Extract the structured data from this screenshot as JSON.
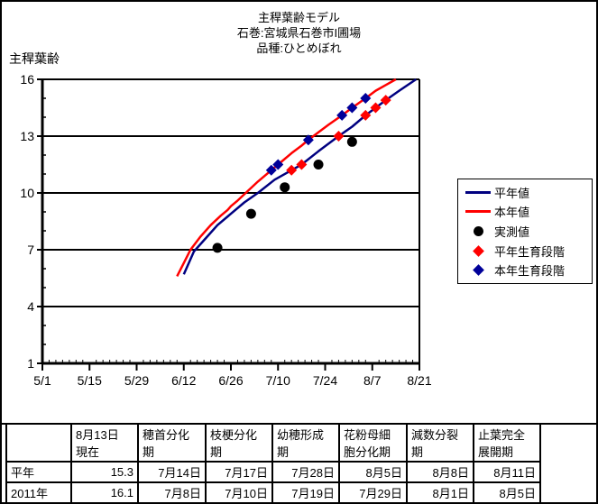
{
  "title": {
    "line1": "主稈葉齢モデル",
    "line2": "石巻:宮城県石巻市I圃場",
    "line3": "品種:ひとめぼれ"
  },
  "y_axis_label": "主稈葉齢",
  "colors": {
    "normal_line": "#000080",
    "this_year_line": "#ff0000",
    "observed_point": "#000000",
    "normal_stage_point": "#ff0000",
    "this_year_stage_point": "#000099"
  },
  "chart_data": {
    "type": "line",
    "title": "主稈葉齢モデル 石巻:宮城県石巻市I圃場 品種:ひとめぼれ",
    "xlabel": "",
    "ylabel": "主稈葉齢",
    "x_range": [
      "5/1",
      "8/21"
    ],
    "y_range": [
      1,
      16
    ],
    "x_ticks": [
      "5/1",
      "5/15",
      "5/29",
      "6/12",
      "6/26",
      "7/10",
      "7/24",
      "8/7",
      "8/21"
    ],
    "y_ticks": [
      16,
      13,
      10,
      7,
      4,
      1
    ],
    "grid": "horizontal-major",
    "legend_position": "right",
    "series": [
      {
        "id": "normal-line",
        "name": "平年値",
        "type": "line",
        "color": "#000080",
        "points": [
          [
            "6/12",
            5.7
          ],
          [
            "6/15",
            6.9
          ],
          [
            "6/18",
            7.5
          ],
          [
            "6/22",
            8.3
          ],
          [
            "6/26",
            8.9
          ],
          [
            "6/30",
            9.5
          ],
          [
            "7/4",
            10.0
          ],
          [
            "7/9",
            10.7
          ],
          [
            "7/14",
            11.2
          ],
          [
            "7/17",
            11.5
          ],
          [
            "7/22",
            12.2
          ],
          [
            "7/28",
            13.0
          ],
          [
            "8/1",
            13.5
          ],
          [
            "8/5",
            14.1
          ],
          [
            "8/8",
            14.5
          ],
          [
            "8/11",
            14.9
          ],
          [
            "8/15",
            15.4
          ],
          [
            "8/20",
            16.0
          ]
        ]
      },
      {
        "id": "this-year-line",
        "name": "本年値",
        "type": "line",
        "color": "#ff0000",
        "points": [
          [
            "6/10",
            5.6
          ],
          [
            "6/12",
            6.3
          ],
          [
            "6/14",
            7.0
          ],
          [
            "6/17",
            7.7
          ],
          [
            "6/20",
            8.3
          ],
          [
            "6/23",
            8.8
          ],
          [
            "6/25",
            9.1
          ],
          [
            "6/26",
            9.3
          ],
          [
            "6/28",
            9.6
          ],
          [
            "7/1",
            10.1
          ],
          [
            "7/4",
            10.6
          ],
          [
            "7/8",
            11.2
          ],
          [
            "7/10",
            11.5
          ],
          [
            "7/14",
            12.1
          ],
          [
            "7/17",
            12.5
          ],
          [
            "7/19",
            12.8
          ],
          [
            "7/22",
            13.2
          ],
          [
            "7/25",
            13.6
          ],
          [
            "7/29",
            14.1
          ],
          [
            "8/1",
            14.5
          ],
          [
            "8/5",
            15.0
          ],
          [
            "8/8",
            15.4
          ],
          [
            "8/11",
            15.7
          ],
          [
            "8/14",
            16.0
          ]
        ]
      },
      {
        "id": "normal-stage-points",
        "name": "平年生育段階",
        "type": "point",
        "marker": "diamond",
        "color": "#ff0000",
        "points": [
          [
            "7/14",
            11.2
          ],
          [
            "7/17",
            11.5
          ],
          [
            "7/28",
            13.0
          ],
          [
            "8/5",
            14.1
          ],
          [
            "8/8",
            14.5
          ],
          [
            "8/11",
            14.9
          ]
        ]
      },
      {
        "id": "this-year-stage-points",
        "name": "本年生育段階",
        "type": "point",
        "marker": "diamond",
        "color": "#000099",
        "points": [
          [
            "7/8",
            11.2
          ],
          [
            "7/10",
            11.5
          ],
          [
            "7/19",
            12.8
          ],
          [
            "7/29",
            14.1
          ],
          [
            "8/1",
            14.5
          ],
          [
            "8/5",
            15.0
          ]
        ]
      },
      {
        "id": "observed-points",
        "name": "実測値",
        "type": "point",
        "marker": "circle",
        "color": "#000000",
        "points": [
          [
            "6/22",
            7.1
          ],
          [
            "7/2",
            8.9
          ],
          [
            "7/12",
            10.3
          ],
          [
            "7/22",
            11.5
          ],
          [
            "8/1",
            12.7
          ]
        ]
      }
    ]
  },
  "legend": {
    "items": [
      {
        "label": "平年値",
        "swatch": "line",
        "color": "#000080"
      },
      {
        "label": "本年値",
        "swatch": "line",
        "color": "#ff0000"
      },
      {
        "label": "実測値",
        "swatch": "circle",
        "color": "#000000"
      },
      {
        "label": "平年生育段階",
        "swatch": "diamond",
        "color": "#ff0000"
      },
      {
        "label": "本年生育段階",
        "swatch": "diamond",
        "color": "#000099"
      }
    ]
  },
  "table": {
    "headers": [
      "",
      "8月13日\n現在",
      "穂首分化\n期",
      "枝梗分化\n期",
      "幼穂形成\n期",
      "花粉母細\n胞分化期",
      "減数分裂\n期",
      "止葉完全\n展開期"
    ],
    "rows": [
      {
        "label": "平年",
        "cells": [
          "15.3",
          "7月14日",
          "7月17日",
          "7月28日",
          "8月5日",
          "8月8日",
          "8月11日"
        ]
      },
      {
        "label": "2011年",
        "cells": [
          "16.1",
          "7月8日",
          "7月10日",
          "7月19日",
          "7月29日",
          "8月1日",
          "8月5日"
        ]
      }
    ]
  }
}
